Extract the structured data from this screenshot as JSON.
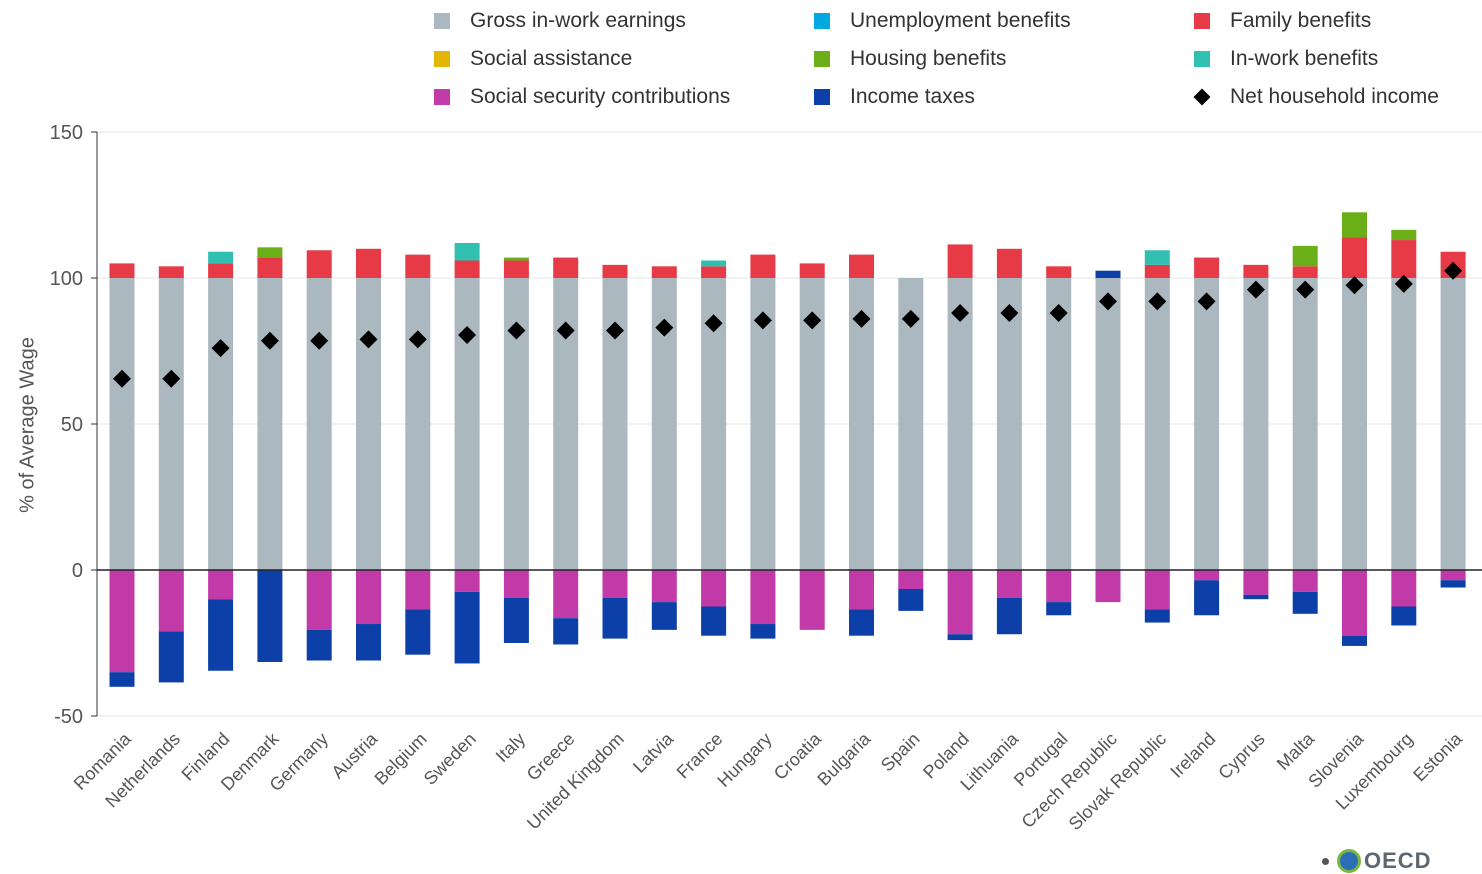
{
  "legend": [
    {
      "label": "Gross in-work earnings",
      "color": "#acb8c0",
      "marker": "square"
    },
    {
      "label": "Unemployment benefits",
      "color": "#00a9e0",
      "marker": "square"
    },
    {
      "label": "Family benefits",
      "color": "#e63a46",
      "marker": "square"
    },
    {
      "label": "Social assistance",
      "color": "#e3b505",
      "marker": "square"
    },
    {
      "label": "Housing benefits",
      "color": "#6aaf18",
      "marker": "square"
    },
    {
      "label": "In-work benefits",
      "color": "#31c0b0",
      "marker": "square"
    },
    {
      "label": "Social security contributions",
      "color": "#c13aa8",
      "marker": "square"
    },
    {
      "label": "Income taxes",
      "color": "#0c3fa8",
      "marker": "square"
    },
    {
      "label": "Net household income",
      "color": "#000000",
      "marker": "diamond"
    }
  ],
  "logo_text": "OECD",
  "chart_data": {
    "type": "bar",
    "stacked": true,
    "ylabel": "% of Average Wage",
    "ylim": [
      -50,
      150
    ],
    "yticks": [
      -50,
      0,
      50,
      100,
      150
    ],
    "grid": true,
    "legend_position": "top",
    "categories": [
      "Romania",
      "Netherlands",
      "Finland",
      "Denmark",
      "Germany",
      "Austria",
      "Belgium",
      "Sweden",
      "Italy",
      "Greece",
      "United Kingdom",
      "Latvia",
      "France",
      "Hungary",
      "Croatia",
      "Bulgaria",
      "Spain",
      "Poland",
      "Lithuania",
      "Portugal",
      "Czech Republic",
      "Slovak Republic",
      "Ireland",
      "Cyprus",
      "Malta",
      "Slovenia",
      "Luxembourg",
      "Estonia"
    ],
    "series": [
      {
        "name": "Gross in-work earnings",
        "color": "#acb8c0",
        "values": [
          100,
          100,
          100,
          100,
          100,
          100,
          100,
          100,
          100,
          100,
          100,
          100,
          100,
          100,
          100,
          100,
          100,
          100,
          100,
          100,
          100,
          100,
          100,
          100,
          100,
          100,
          100,
          100
        ]
      },
      {
        "name": "Unemployment benefits",
        "color": "#00a9e0",
        "values": [
          0,
          0,
          0,
          0,
          0,
          0,
          0,
          0,
          0,
          0,
          0,
          0,
          0,
          0,
          0,
          0,
          0,
          0,
          0,
          0,
          0,
          0,
          0,
          0,
          0,
          0,
          0,
          0
        ]
      },
      {
        "name": "Income taxes (positive)",
        "color": "#0c3fa8",
        "values": [
          0,
          0,
          0,
          0,
          0,
          0,
          0,
          0,
          0,
          0,
          0,
          0,
          0,
          0,
          0,
          0,
          0,
          0,
          0,
          0,
          2.5,
          0,
          0,
          0,
          0,
          0,
          0,
          0
        ]
      },
      {
        "name": "Family benefits",
        "color": "#e63a46",
        "values": [
          5,
          4,
          5,
          7,
          9.5,
          10,
          8,
          6,
          6,
          7,
          4.5,
          4,
          4,
          8,
          5,
          8,
          0,
          11.5,
          10,
          4,
          0,
          4.5,
          7,
          4.5,
          4,
          14,
          13,
          9
        ]
      },
      {
        "name": "Social assistance",
        "color": "#e3b505",
        "values": [
          0,
          0,
          0,
          0,
          0,
          0,
          0,
          0,
          0,
          0,
          0,
          0,
          0,
          0,
          0,
          0,
          0,
          0,
          0,
          0,
          0,
          0,
          0,
          0,
          0,
          0,
          0,
          0
        ]
      },
      {
        "name": "Housing benefits",
        "color": "#6aaf18",
        "values": [
          0,
          0,
          0,
          3.5,
          0,
          0,
          0,
          0,
          1,
          0,
          0,
          0,
          0,
          0,
          0,
          0,
          0,
          0,
          0,
          0,
          0,
          0,
          0,
          0,
          7,
          8.5,
          3.5,
          0
        ]
      },
      {
        "name": "In-work benefits",
        "color": "#31c0b0",
        "values": [
          0,
          0,
          4,
          0,
          0,
          0,
          0,
          6,
          0,
          0,
          0,
          0,
          2,
          0,
          0,
          0,
          0,
          0,
          0,
          0,
          0,
          5,
          0,
          0,
          0,
          0,
          0,
          0
        ]
      },
      {
        "name": "Social security contributions",
        "color": "#c13aa8",
        "values": [
          -35,
          -21,
          -10,
          0,
          -20.5,
          -18.5,
          -13.5,
          -7.5,
          -9.5,
          -16.5,
          -9.5,
          -11,
          -12.5,
          -18.5,
          -20.5,
          -13.5,
          -6.5,
          -22,
          -9.5,
          -11,
          -11,
          -13.5,
          -3.5,
          -8.5,
          -7.5,
          -22.5,
          -12.5,
          -3.5
        ]
      },
      {
        "name": "Income taxes",
        "color": "#0c3fa8",
        "values": [
          -5,
          -17.5,
          -24.5,
          -31.5,
          -10.5,
          -12.5,
          -15.5,
          -24.5,
          -15.5,
          -9,
          -14,
          -9.5,
          -10,
          -5,
          0,
          -9,
          -7.5,
          -2,
          -12.5,
          -4.5,
          0,
          -4.5,
          -12,
          -1.5,
          -7.5,
          -3.5,
          -6.5,
          -2.5
        ]
      }
    ],
    "markers": {
      "name": "Net household income",
      "color": "#000000",
      "shape": "diamond",
      "values": [
        65.5,
        65.5,
        76,
        78.5,
        78.5,
        79,
        79,
        80.5,
        82,
        82,
        82,
        83,
        84.5,
        85.5,
        85.5,
        86,
        86,
        88,
        88,
        88,
        92,
        92,
        92,
        96,
        96,
        97.5,
        98,
        102.5
      ]
    }
  }
}
